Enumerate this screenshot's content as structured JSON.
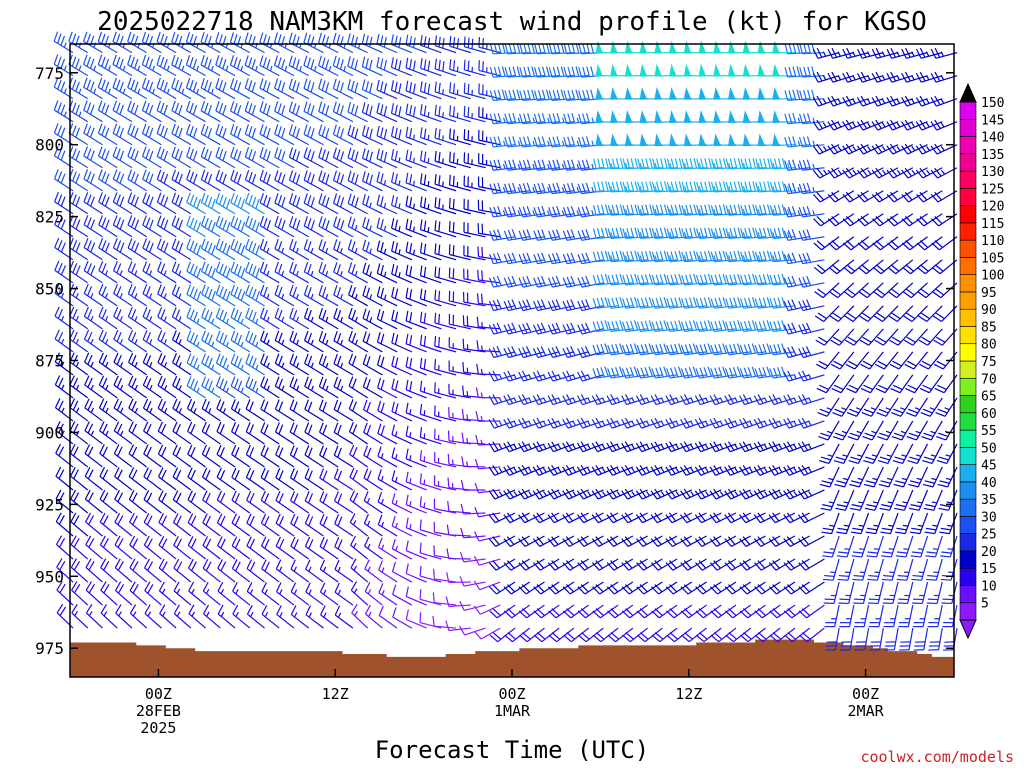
{
  "chart_data": {
    "type": "wind-barb-profile",
    "title": "2025022718 NAM3KM forecast wind profile (kt) for KGSO",
    "xlabel": "Forecast Time (UTC)",
    "credit": "coolwx.com/models",
    "y_axis": {
      "label": "",
      "unit": "hPa",
      "range": [
        985,
        765
      ],
      "ticks": [
        "775",
        "800",
        "825",
        "850",
        "875",
        "900",
        "925",
        "950",
        "975"
      ],
      "levels": [
        775,
        800,
        825,
        850,
        875,
        900,
        925,
        950,
        975
      ]
    },
    "x_axis": {
      "range_hours": [
        -6,
        54
      ],
      "step_hours": 1,
      "ticks": [
        {
          "hour": 0,
          "lines": [
            "00Z",
            "28FEB",
            "2025"
          ]
        },
        {
          "hour": 12,
          "lines": [
            "12Z"
          ]
        },
        {
          "hour": 24,
          "lines": [
            "00Z",
            "1MAR"
          ]
        },
        {
          "hour": 36,
          "lines": [
            "12Z"
          ]
        },
        {
          "hour": 48,
          "lines": [
            "00Z",
            "2MAR"
          ]
        }
      ]
    },
    "colorbar": {
      "unit": "kt",
      "labels": [
        "5",
        "10",
        "15",
        "20",
        "25",
        "30",
        "35",
        "40",
        "45",
        "50",
        "55",
        "60",
        "65",
        "70",
        "75",
        "80",
        "85",
        "90",
        "95",
        "100",
        "105",
        "110",
        "115",
        "120",
        "125",
        "130",
        "135",
        "140",
        "145",
        "150"
      ],
      "colors": [
        "#8a1aff",
        "#6a10ff",
        "#2a00ee",
        "#0000c8",
        "#1a28e8",
        "#1c50f0",
        "#1a70f0",
        "#1c8ff0",
        "#18b0f0",
        "#14e0d0",
        "#10f0a0",
        "#20e040",
        "#30d020",
        "#80f020",
        "#d0f020",
        "#ffff00",
        "#ffe000",
        "#ffc000",
        "#ffa000",
        "#ff9000",
        "#ff7000",
        "#ff5000",
        "#ff2000",
        "#ff0000",
        "#ff0040",
        "#ff0060",
        "#f00090",
        "#f000b0",
        "#e000d0",
        "#e000f0"
      ]
    },
    "surface_pressure": [
      {
        "hour": -6,
        "hpa": 973
      },
      {
        "hour": -2,
        "hpa": 973
      },
      {
        "hour": 0,
        "hpa": 974
      },
      {
        "hour": 2,
        "hpa": 975
      },
      {
        "hour": 3,
        "hpa": 976
      },
      {
        "hour": 10,
        "hpa": 976
      },
      {
        "hour": 12,
        "hpa": 976
      },
      {
        "hour": 14,
        "hpa": 977
      },
      {
        "hour": 18,
        "hpa": 978
      },
      {
        "hour": 22,
        "hpa": 976
      },
      {
        "hour": 26,
        "hpa": 975
      },
      {
        "hour": 30,
        "hpa": 974
      },
      {
        "hour": 34,
        "hpa": 974
      },
      {
        "hour": 38,
        "hpa": 973
      },
      {
        "hour": 43,
        "hpa": 972
      },
      {
        "hour": 46,
        "hpa": 973
      },
      {
        "hour": 49,
        "hpa": 975
      },
      {
        "hour": 52,
        "hpa": 977
      },
      {
        "hour": 54,
        "hpa": 978
      }
    ],
    "ground_color": "#a0522d",
    "barb_level_step_hpa": 8,
    "barb_level_top_hpa": 768
  }
}
